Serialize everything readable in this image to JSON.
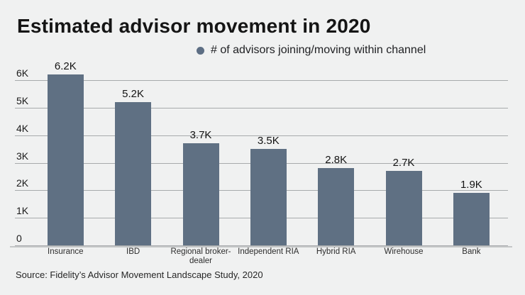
{
  "page": {
    "title": "Estimated advisor movement in 2020",
    "source": "Source: Fidelity’s Advisor Movement Landscape Study, 2020",
    "background_color": "#f0f1f1"
  },
  "legend": {
    "marker_icon": "circle",
    "marker_color": "#5d6e84",
    "label": "# of advisors joining/moving within channel"
  },
  "chart_data": {
    "type": "bar",
    "title": "Estimated advisor movement in 2020",
    "series_name": "# of advisors joining/moving within channel",
    "categories": [
      "Insurance",
      "IBD",
      "Regional broker-dealer",
      "Independent RIA",
      "Hybrid RIA",
      "Wirehouse",
      "Bank"
    ],
    "values": [
      6200,
      5200,
      3700,
      3500,
      2800,
      2700,
      1900
    ],
    "value_labels": [
      "6.2K",
      "5.2K",
      "3.7K",
      "3.5K",
      "2.8K",
      "2.7K",
      "1.9K"
    ],
    "xlabel": "",
    "ylabel": "",
    "ylim": [
      0,
      6200
    ],
    "y_ticks": [
      {
        "value": 0,
        "label": "0"
      },
      {
        "value": 1000,
        "label": "1K"
      },
      {
        "value": 2000,
        "label": "2K"
      },
      {
        "value": 3000,
        "label": "3K"
      },
      {
        "value": 4000,
        "label": "4K"
      },
      {
        "value": 5000,
        "label": "5K"
      },
      {
        "value": 6000,
        "label": "6K"
      }
    ],
    "grid": true,
    "legend_position": "top-center",
    "bar_color": "#5f7083",
    "grid_color": "#a7aaac",
    "axis_line_color": "#c5c7c8",
    "source": "Source: Fidelity’s Advisor Movement Landscape Study, 2020"
  }
}
